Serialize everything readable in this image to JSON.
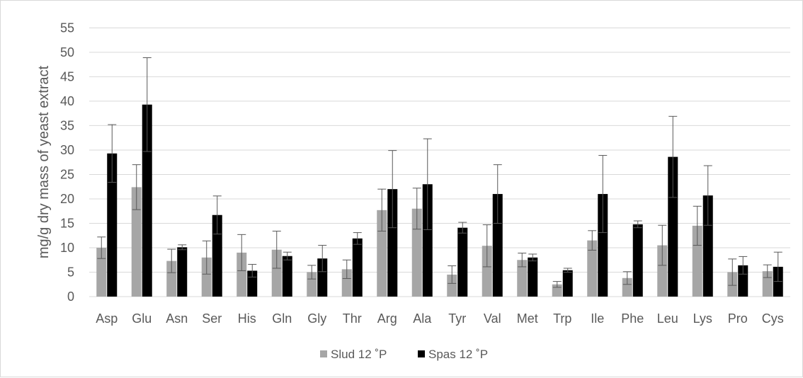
{
  "chart_data": {
    "type": "bar",
    "title": "",
    "xlabel": "",
    "ylabel": "mg/g dry mass of yeast extract",
    "ylim": [
      0,
      55
    ],
    "yticks": [
      0,
      5,
      10,
      15,
      20,
      25,
      30,
      35,
      40,
      45,
      50,
      55
    ],
    "grid": true,
    "legend_position": "bottom",
    "categories": [
      "Asp",
      "Glu",
      "Asn",
      "Ser",
      "His",
      "Gln",
      "Gly",
      "Thr",
      "Arg",
      "Ala",
      "Tyr",
      "Val",
      "Met",
      "Trp",
      "Ile",
      "Phe",
      "Leu",
      "Lys",
      "Pro",
      "Cys"
    ],
    "series": [
      {
        "name": "Slud 12 ˚P",
        "color": "#a6a6a6",
        "values": [
          10.0,
          22.4,
          7.3,
          8.0,
          9.0,
          9.6,
          5.0,
          5.6,
          17.7,
          18.0,
          4.5,
          10.4,
          7.5,
          2.5,
          11.5,
          3.8,
          10.5,
          14.5,
          5.0,
          5.2
        ],
        "errors": [
          2.2,
          4.6,
          2.4,
          3.4,
          3.7,
          3.8,
          1.4,
          1.9,
          4.3,
          4.2,
          1.8,
          4.3,
          1.4,
          0.6,
          2.0,
          1.3,
          4.1,
          4.0,
          2.7,
          1.3
        ]
      },
      {
        "name": "Spas 12 ˚P",
        "color": "#000000",
        "values": [
          29.3,
          39.3,
          10.1,
          16.7,
          5.3,
          8.3,
          7.8,
          11.9,
          22.0,
          23.0,
          14.1,
          21.0,
          8.0,
          5.4,
          21.0,
          14.8,
          28.6,
          20.7,
          6.4,
          6.1
        ],
        "errors": [
          5.9,
          9.6,
          0.5,
          3.9,
          1.3,
          0.8,
          2.7,
          1.2,
          7.9,
          9.3,
          1.1,
          6.0,
          0.7,
          0.4,
          7.9,
          0.7,
          8.3,
          6.1,
          1.8,
          3.0
        ]
      }
    ]
  }
}
